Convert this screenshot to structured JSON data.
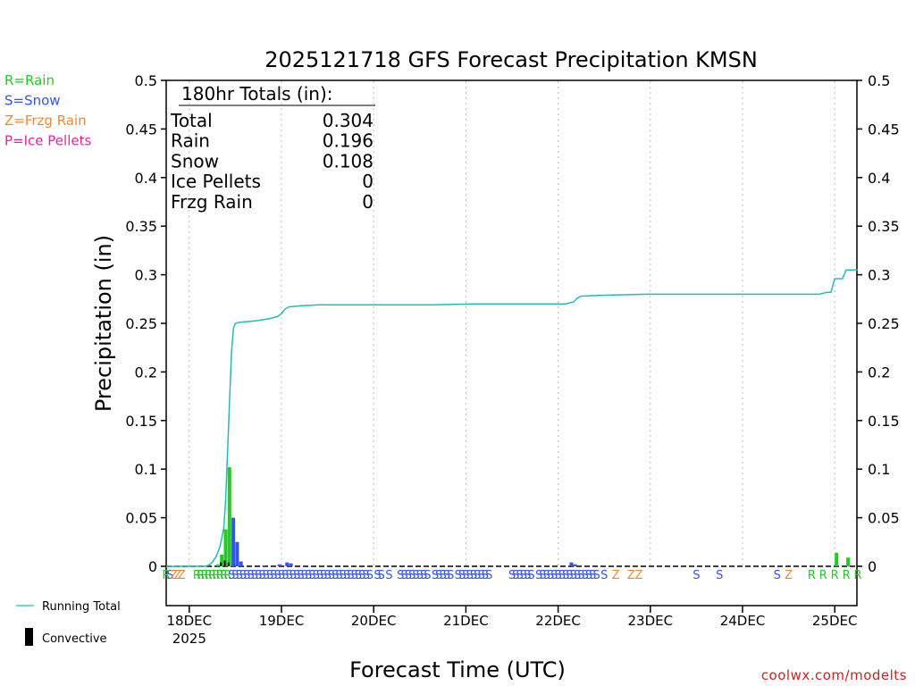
{
  "chart_data": {
    "type": "bar",
    "title": "2025121718 GFS Forecast Precipitation KMSN",
    "ylabel": "Precipitation (in)",
    "xlabel": "Forecast Time (UTC)",
    "ylim": [
      0,
      0.5
    ],
    "yticks": [
      0,
      0.05,
      0.1,
      0.15,
      0.2,
      0.25,
      0.3,
      0.35,
      0.4,
      0.45,
      0.5
    ],
    "ytick_labels": [
      "0",
      "0.05",
      "0.1",
      "0.15",
      "0.2",
      "0.25",
      "0.3",
      "0.35",
      "0.4",
      "0.45",
      "0.5"
    ],
    "x_unit": "forecast hours from 2025121718",
    "xlim": [
      0,
      180
    ],
    "xticks": [
      {
        "hour": 6,
        "label": "18DEC",
        "sublabel": "2025"
      },
      {
        "hour": 30,
        "label": "19DEC",
        "sublabel": ""
      },
      {
        "hour": 54,
        "label": "20DEC",
        "sublabel": ""
      },
      {
        "hour": 78,
        "label": "21DEC",
        "sublabel": ""
      },
      {
        "hour": 102,
        "label": "22DEC",
        "sublabel": ""
      },
      {
        "hour": 126,
        "label": "23DEC",
        "sublabel": ""
      },
      {
        "hour": 150,
        "label": "24DEC",
        "sublabel": ""
      },
      {
        "hour": 174,
        "label": "25DEC",
        "sublabel": ""
      }
    ],
    "legend": [
      {
        "label": "R=Rain",
        "color": "#22cc22"
      },
      {
        "label": "S=Snow",
        "color": "#3355ee"
      },
      {
        "label": "Z=Frzg Rain",
        "color": "#ee8833"
      },
      {
        "label": "P=Ice Pellets",
        "color": "#ee2299"
      }
    ],
    "totals_box": {
      "heading": "180hr Totals (in):",
      "rows": [
        {
          "label": "Total",
          "value": "0.304"
        },
        {
          "label": "Rain",
          "value": "0.196"
        },
        {
          "label": "Snow",
          "value": "0.108"
        },
        {
          "label": "Ice Pellets",
          "value": "0"
        },
        {
          "label": "Frzg Rain",
          "value": "0"
        }
      ]
    },
    "series": [
      {
        "name": "Running Total",
        "kind": "line",
        "color": "#22bbbb",
        "points": [
          [
            0,
            0
          ],
          [
            10,
            0
          ],
          [
            11,
            0.001
          ],
          [
            12,
            0.004
          ],
          [
            13,
            0.01
          ],
          [
            14,
            0.02
          ],
          [
            15,
            0.04
          ],
          [
            15.5,
            0.07
          ],
          [
            16,
            0.12
          ],
          [
            16.5,
            0.17
          ],
          [
            17,
            0.22
          ],
          [
            17.5,
            0.245
          ],
          [
            18,
            0.25
          ],
          [
            19,
            0.251
          ],
          [
            22,
            0.252
          ],
          [
            24,
            0.253
          ],
          [
            27,
            0.255
          ],
          [
            29,
            0.257
          ],
          [
            30,
            0.26
          ],
          [
            31,
            0.265
          ],
          [
            32,
            0.267
          ],
          [
            35,
            0.268
          ],
          [
            40,
            0.269
          ],
          [
            55,
            0.269
          ],
          [
            70,
            0.269
          ],
          [
            80,
            0.27
          ],
          [
            100,
            0.27
          ],
          [
            104,
            0.27
          ],
          [
            106,
            0.272
          ],
          [
            107,
            0.276
          ],
          [
            108,
            0.278
          ],
          [
            115,
            0.279
          ],
          [
            125,
            0.28
          ],
          [
            170,
            0.28
          ],
          [
            172,
            0.282
          ],
          [
            173,
            0.282
          ],
          [
            174,
            0.296
          ],
          [
            176,
            0.296
          ],
          [
            177,
            0.305
          ],
          [
            180,
            0.305
          ]
        ]
      },
      {
        "name": "Rain (hourly)",
        "kind": "bar",
        "color": "#22cc22",
        "bars": [
          [
            13,
            0.002
          ],
          [
            14,
            0.012
          ],
          [
            15,
            0.038
          ],
          [
            16,
            0.102
          ],
          [
            17,
            0.006
          ],
          [
            174,
            0.014
          ],
          [
            177,
            0.009
          ]
        ]
      },
      {
        "name": "Snow (hourly)",
        "kind": "bar",
        "color": "#3355ee",
        "bars": [
          [
            17,
            0.05
          ],
          [
            18,
            0.025
          ],
          [
            19,
            0.005
          ],
          [
            25,
            0.001
          ],
          [
            29,
            0.002
          ],
          [
            31,
            0.004
          ],
          [
            32,
            0.003
          ],
          [
            105,
            0.004
          ],
          [
            106,
            0.002
          ]
        ]
      },
      {
        "name": "Convective",
        "kind": "bar",
        "color": "#000000",
        "bars": [
          [
            14,
            0.004
          ],
          [
            15,
            0.006
          ],
          [
            16,
            0.004
          ]
        ]
      }
    ],
    "ptype_strip": [
      {
        "h": 0,
        "t": "R"
      },
      {
        "h": 1,
        "t": "S"
      },
      {
        "h": 2,
        "t": "Z"
      },
      {
        "h": 3,
        "t": "Z"
      },
      {
        "h": 4,
        "t": "Z"
      },
      {
        "h": 8,
        "t": "R"
      },
      {
        "h": 9,
        "t": "R"
      },
      {
        "h": 10,
        "t": "R"
      },
      {
        "h": 11,
        "t": "R"
      },
      {
        "h": 12,
        "t": "R"
      },
      {
        "h": 13,
        "t": "R"
      },
      {
        "h": 14,
        "t": "R"
      },
      {
        "h": 15,
        "t": "R"
      },
      {
        "h": 16,
        "t": "R"
      },
      {
        "h": 17,
        "t": "S"
      },
      {
        "h": 18,
        "t": "S"
      },
      {
        "h": 19,
        "t": "S"
      },
      {
        "h": 20,
        "t": "S"
      },
      {
        "h": 21,
        "t": "S"
      },
      {
        "h": 22,
        "t": "S"
      },
      {
        "h": 23,
        "t": "S"
      },
      {
        "h": 24,
        "t": "S"
      },
      {
        "h": 25,
        "t": "S"
      },
      {
        "h": 26,
        "t": "S"
      },
      {
        "h": 27,
        "t": "S"
      },
      {
        "h": 28,
        "t": "S"
      },
      {
        "h": 29,
        "t": "S"
      },
      {
        "h": 30,
        "t": "S"
      },
      {
        "h": 31,
        "t": "S"
      },
      {
        "h": 32,
        "t": "S"
      },
      {
        "h": 33,
        "t": "S"
      },
      {
        "h": 34,
        "t": "S"
      },
      {
        "h": 35,
        "t": "S"
      },
      {
        "h": 36,
        "t": "S"
      },
      {
        "h": 37,
        "t": "S"
      },
      {
        "h": 38,
        "t": "S"
      },
      {
        "h": 39,
        "t": "S"
      },
      {
        "h": 40,
        "t": "S"
      },
      {
        "h": 41,
        "t": "S"
      },
      {
        "h": 42,
        "t": "S"
      },
      {
        "h": 43,
        "t": "S"
      },
      {
        "h": 44,
        "t": "S"
      },
      {
        "h": 45,
        "t": "S"
      },
      {
        "h": 46,
        "t": "S"
      },
      {
        "h": 47,
        "t": "S"
      },
      {
        "h": 48,
        "t": "S"
      },
      {
        "h": 49,
        "t": "S"
      },
      {
        "h": 50,
        "t": "S"
      },
      {
        "h": 51,
        "t": "S"
      },
      {
        "h": 52,
        "t": "S"
      },
      {
        "h": 53,
        "t": "S"
      },
      {
        "h": 55,
        "t": "S"
      },
      {
        "h": 56,
        "t": "S"
      },
      {
        "h": 58,
        "t": "S"
      },
      {
        "h": 61,
        "t": "S"
      },
      {
        "h": 62,
        "t": "S"
      },
      {
        "h": 63,
        "t": "S"
      },
      {
        "h": 64,
        "t": "S"
      },
      {
        "h": 65,
        "t": "S"
      },
      {
        "h": 66,
        "t": "S"
      },
      {
        "h": 67,
        "t": "S"
      },
      {
        "h": 68,
        "t": "S"
      },
      {
        "h": 70,
        "t": "S"
      },
      {
        "h": 71,
        "t": "S"
      },
      {
        "h": 72,
        "t": "S"
      },
      {
        "h": 73,
        "t": "S"
      },
      {
        "h": 74,
        "t": "S"
      },
      {
        "h": 76,
        "t": "S"
      },
      {
        "h": 77,
        "t": "S"
      },
      {
        "h": 78,
        "t": "S"
      },
      {
        "h": 79,
        "t": "S"
      },
      {
        "h": 80,
        "t": "S"
      },
      {
        "h": 81,
        "t": "S"
      },
      {
        "h": 82,
        "t": "S"
      },
      {
        "h": 83,
        "t": "S"
      },
      {
        "h": 84,
        "t": "S"
      },
      {
        "h": 90,
        "t": "S"
      },
      {
        "h": 91,
        "t": "S"
      },
      {
        "h": 92,
        "t": "S"
      },
      {
        "h": 93,
        "t": "S"
      },
      {
        "h": 94,
        "t": "S"
      },
      {
        "h": 95,
        "t": "S"
      },
      {
        "h": 97,
        "t": "S"
      },
      {
        "h": 98,
        "t": "S"
      },
      {
        "h": 99,
        "t": "S"
      },
      {
        "h": 100,
        "t": "S"
      },
      {
        "h": 101,
        "t": "S"
      },
      {
        "h": 102,
        "t": "S"
      },
      {
        "h": 103,
        "t": "S"
      },
      {
        "h": 104,
        "t": "S"
      },
      {
        "h": 105,
        "t": "S"
      },
      {
        "h": 106,
        "t": "S"
      },
      {
        "h": 107,
        "t": "S"
      },
      {
        "h": 108,
        "t": "S"
      },
      {
        "h": 109,
        "t": "S"
      },
      {
        "h": 110,
        "t": "S"
      },
      {
        "h": 111,
        "t": "S"
      },
      {
        "h": 112,
        "t": "S"
      },
      {
        "h": 114,
        "t": "S"
      },
      {
        "h": 117,
        "t": "Z"
      },
      {
        "h": 121,
        "t": "Z"
      },
      {
        "h": 123,
        "t": "Z"
      },
      {
        "h": 138,
        "t": "S"
      },
      {
        "h": 144,
        "t": "S"
      },
      {
        "h": 159,
        "t": "S"
      },
      {
        "h": 162,
        "t": "Z"
      },
      {
        "h": 168,
        "t": "R"
      },
      {
        "h": 171,
        "t": "R"
      },
      {
        "h": 174,
        "t": "R"
      },
      {
        "h": 177,
        "t": "R"
      },
      {
        "h": 180,
        "t": "R"
      }
    ],
    "bottom_legend": [
      {
        "label": "Running Total",
        "color": "#22bbbb"
      },
      {
        "label": "Convective",
        "color": "#000000"
      }
    ]
  },
  "footer": {
    "credit": "coolwx.com/modelts"
  }
}
